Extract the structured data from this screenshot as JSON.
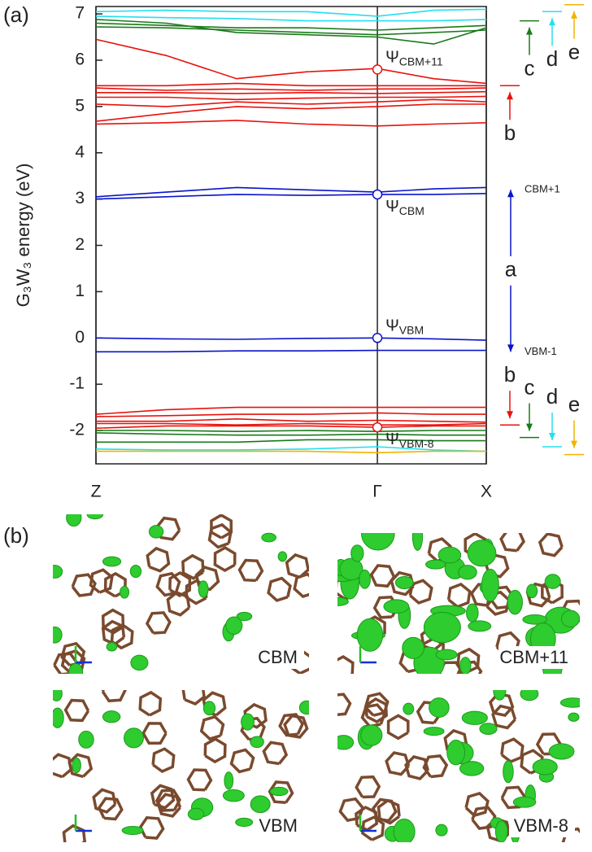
{
  "chart_data": {
    "type": "line",
    "panel_label": "(a)",
    "ylabel": "G₃W₃ energy (eV)",
    "x": [
      0,
      0.25,
      0.5,
      0.75,
      1,
      1.2,
      1.387
    ],
    "xlim": [
      0,
      1.387
    ],
    "xticks": [
      {
        "value": 0,
        "label": "Z"
      },
      {
        "value": 1,
        "label": "Γ"
      },
      {
        "value": 1.387,
        "label": "X"
      }
    ],
    "ylim": [
      -2.72,
      7.16
    ],
    "yticks": [
      -2,
      -1,
      0,
      1,
      2,
      3,
      4,
      5,
      6,
      7
    ],
    "series": [
      {
        "color": "#e8120c",
        "values": [
          6.45,
          6.1,
          5.6,
          5.75,
          5.82,
          5.6,
          5.5
        ]
      },
      {
        "color": "#e8120c",
        "values": [
          5.45,
          5.45,
          5.5,
          5.45,
          5.45,
          5.45,
          5.45
        ]
      },
      {
        "color": "#e8120c",
        "values": [
          5.4,
          5.35,
          5.38,
          5.35,
          5.38,
          5.38,
          5.4
        ]
      },
      {
        "color": "#e8120c",
        "values": [
          5.3,
          5.3,
          5.28,
          5.3,
          5.28,
          5.3,
          5.32
        ]
      },
      {
        "color": "#e8120c",
        "values": [
          5.2,
          5.2,
          5.15,
          5.18,
          5.2,
          5.2,
          5.22
        ]
      },
      {
        "color": "#e8120c",
        "values": [
          5.05,
          5.0,
          5.1,
          5.05,
          5.1,
          5.15,
          5.1
        ]
      },
      {
        "color": "#e8120c",
        "values": [
          4.68,
          4.85,
          5.0,
          4.95,
          5.0,
          5.05,
          5.05
        ]
      },
      {
        "color": "#e8120c",
        "values": [
          4.62,
          4.65,
          4.7,
          4.62,
          4.58,
          4.62,
          4.65
        ]
      },
      {
        "color": "#1a7a1a",
        "values": [
          6.88,
          6.8,
          6.6,
          6.55,
          6.5,
          6.35,
          6.7
        ]
      },
      {
        "color": "#1a7a1a",
        "values": [
          6.8,
          6.75,
          6.7,
          6.7,
          6.65,
          6.7,
          6.75
        ]
      },
      {
        "color": "#1a7a1a",
        "values": [
          6.72,
          6.7,
          6.65,
          6.6,
          6.55,
          6.6,
          6.65
        ]
      },
      {
        "color": "#22e0f0",
        "values": [
          7.05,
          7.08,
          7.05,
          7.05,
          6.95,
          7.08,
          7.1
        ]
      },
      {
        "color": "#22e0f0",
        "values": [
          6.95,
          6.92,
          6.9,
          6.85,
          6.85,
          6.85,
          6.88
        ]
      },
      {
        "color": "#0a14c8",
        "values": [
          3.05,
          3.15,
          3.25,
          3.2,
          3.15,
          3.22,
          3.25
        ]
      },
      {
        "color": "#0a14c8",
        "values": [
          3.0,
          3.05,
          3.1,
          3.08,
          3.1,
          3.1,
          3.12
        ]
      },
      {
        "color": "#0a14c8",
        "values": [
          0.0,
          -0.02,
          -0.03,
          -0.01,
          0.0,
          -0.02,
          -0.05
        ]
      },
      {
        "color": "#0a14c8",
        "values": [
          -0.3,
          -0.3,
          -0.28,
          -0.28,
          -0.27,
          -0.27,
          -0.27
        ]
      },
      {
        "color": "#e8120c",
        "values": [
          -1.65,
          -1.55,
          -1.5,
          -1.5,
          -1.5,
          -1.5,
          -1.5
        ]
      },
      {
        "color": "#e8120c",
        "values": [
          -1.7,
          -1.68,
          -1.65,
          -1.65,
          -1.62,
          -1.65,
          -1.65
        ]
      },
      {
        "color": "#e8120c",
        "values": [
          -1.8,
          -1.8,
          -1.75,
          -1.8,
          -1.78,
          -1.8,
          -1.82
        ]
      },
      {
        "color": "#e8120c",
        "values": [
          -1.85,
          -1.85,
          -1.88,
          -1.85,
          -1.88,
          -1.88,
          -1.85
        ]
      },
      {
        "color": "#e8120c",
        "values": [
          -1.95,
          -1.9,
          -1.9,
          -1.9,
          -1.93,
          -1.9,
          -1.9
        ]
      },
      {
        "color": "#1a7a1a",
        "values": [
          -2.0,
          -2.0,
          -2.02,
          -2.0,
          -2.02,
          -2.0,
          -2.0
        ]
      },
      {
        "color": "#1a7a1a",
        "values": [
          -2.05,
          -2.08,
          -2.1,
          -2.1,
          -2.08,
          -2.1,
          -2.1
        ]
      },
      {
        "color": "#1a7a1a",
        "values": [
          -2.25,
          -2.25,
          -2.25,
          -2.2,
          -2.2,
          -2.22,
          -2.22
        ]
      },
      {
        "color": "#22e0f0",
        "values": [
          -2.4,
          -2.42,
          -2.42,
          -2.4,
          -2.35,
          -2.42,
          -2.45
        ]
      },
      {
        "color": "#f0b400",
        "values": [
          -2.45,
          -2.45,
          -2.45,
          -2.45,
          -2.48,
          -2.45,
          -2.45
        ]
      }
    ],
    "states": [
      {
        "symbol": "Ψ",
        "sub": "CBM+11",
        "x": 1,
        "y": 5.8,
        "color": "#e8120c"
      },
      {
        "symbol": "Ψ",
        "sub": "CBM",
        "x": 1,
        "y": 3.1,
        "color": "#0a14c8"
      },
      {
        "symbol": "Ψ",
        "sub": "VBM",
        "x": 1,
        "y": 0,
        "color": "#0a14c8"
      },
      {
        "symbol": "Ψ",
        "sub": "VBM-8",
        "x": 1,
        "y": -1.93,
        "color": "#e8120c"
      }
    ],
    "gap": {
      "label": "a",
      "upper": "CBM+1",
      "lower": "VBM-1",
      "y_upper": 3.2,
      "y_lower": -0.3,
      "color": "#0a14c8"
    },
    "upper_levels": [
      {
        "label": "b",
        "color": "#e8120c",
        "y": 5.45
      },
      {
        "label": "c",
        "color": "#1a7a1a",
        "y": 6.85
      },
      {
        "label": "d",
        "color": "#22e0f0",
        "y": 7.05
      },
      {
        "label": "e",
        "color": "#f0b400",
        "y": 7.2
      }
    ],
    "lower_levels": [
      {
        "label": "b",
        "color": "#e8120c",
        "y": -1.88
      },
      {
        "label": "c",
        "color": "#1a7a1a",
        "y": -2.15
      },
      {
        "label": "d",
        "color": "#22e0f0",
        "y": -2.35
      },
      {
        "label": "e",
        "color": "#f0b400",
        "y": -2.52
      }
    ]
  },
  "orbitals": {
    "panel_label": "(b)",
    "panels": [
      {
        "label": "CBM",
        "color": "#0a14c8"
      },
      {
        "label": "CBM+11",
        "color": "#e8120c"
      },
      {
        "label": "VBM",
        "color": "#0a14c8"
      },
      {
        "label": "VBM-8",
        "color": "#e8120c"
      }
    ]
  }
}
